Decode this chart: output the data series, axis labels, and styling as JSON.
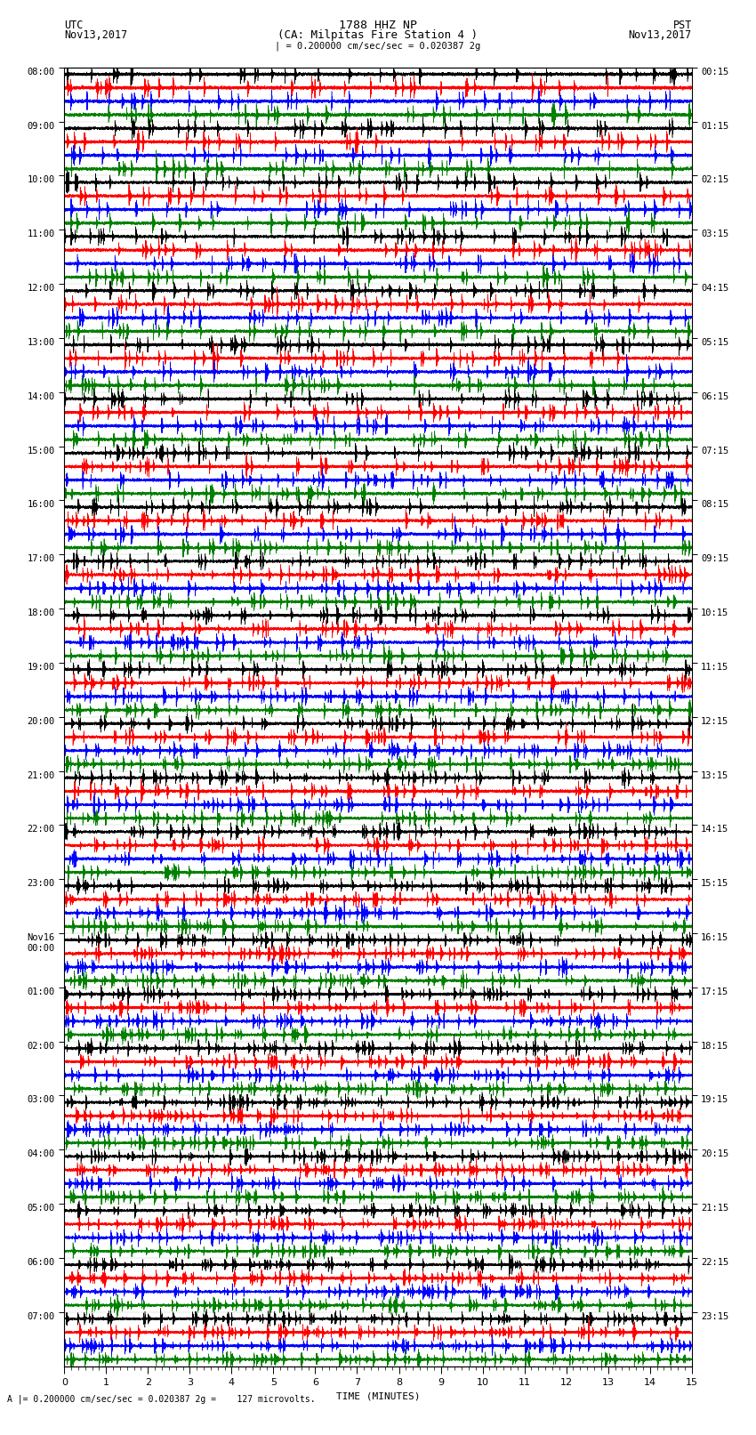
{
  "title_line1": "1788 HHZ NP",
  "title_line2": "(CA: Milpitas Fire Station 4 )",
  "utc_label1": "UTC",
  "utc_label2": "Nov13,2017",
  "pst_label1": "PST",
  "pst_label2": "Nov13,2017",
  "scale_label": "| = 0.200000 cm/sec/sec = 0.020387 2g",
  "bottom_label": "A |= 0.200000 cm/sec/sec = 0.020387 2g =    127 microvolts.",
  "xlabel": "TIME (MINUTES)",
  "left_times": [
    "08:00",
    "09:00",
    "10:00",
    "11:00",
    "12:00",
    "13:00",
    "14:00",
    "15:00",
    "16:00",
    "17:00",
    "18:00",
    "19:00",
    "20:00",
    "21:00",
    "22:00",
    "23:00",
    "Nov16\n00:00",
    "01:00",
    "02:00",
    "03:00",
    "04:00",
    "05:00",
    "06:00",
    "07:00"
  ],
  "right_times": [
    "00:15",
    "01:15",
    "02:15",
    "03:15",
    "04:15",
    "05:15",
    "06:15",
    "07:15",
    "08:15",
    "09:15",
    "10:15",
    "11:15",
    "12:15",
    "13:15",
    "14:15",
    "15:15",
    "16:15",
    "17:15",
    "18:15",
    "19:15",
    "20:15",
    "21:15",
    "22:15",
    "23:15"
  ],
  "colors": [
    "black",
    "red",
    "blue",
    "green"
  ],
  "n_rows": 24,
  "traces_per_row": 4,
  "minutes": 15,
  "sample_rate": 40,
  "fig_width": 8.5,
  "fig_height": 16.13,
  "dpi": 100
}
